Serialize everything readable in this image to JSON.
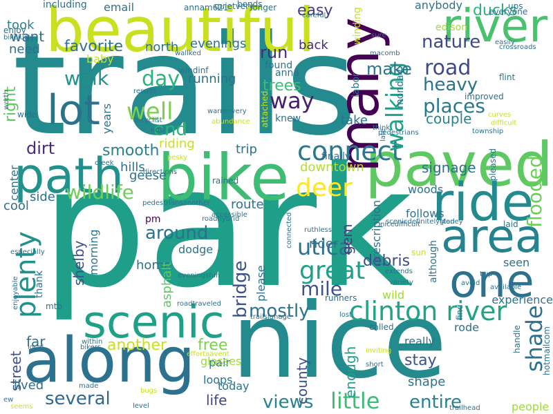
{
  "cloud": {
    "words": [
      {
        "text": "trails",
        "color": "#238a8d"
      },
      {
        "text": "park",
        "color": "#1f9e89"
      },
      {
        "text": "nice",
        "color": "#238a8d"
      },
      {
        "text": "bike",
        "color": "#3fbc73"
      },
      {
        "text": "beautiful",
        "color": "#c8e020"
      },
      {
        "text": "along",
        "color": "#2c718e"
      },
      {
        "text": "paved",
        "color": "#5ec962"
      },
      {
        "text": "path",
        "color": "#21918c"
      },
      {
        "text": "scenic",
        "color": "#1fa188"
      },
      {
        "text": "many",
        "color": "#440154"
      },
      {
        "text": "river",
        "color": "#4ac16d"
      },
      {
        "text": "ride",
        "color": "#238a8d"
      },
      {
        "text": "area",
        "color": "#26828e"
      },
      {
        "text": "one",
        "color": "#2c718e"
      },
      {
        "text": "lot",
        "color": "#2c728e"
      },
      {
        "text": "connect",
        "color": "#2a788e"
      },
      {
        "text": "clinton river",
        "color": "#20a486"
      },
      {
        "text": "deer",
        "color": "#fde725"
      },
      {
        "text": "plenty",
        "color": "#21918c"
      },
      {
        "text": "great",
        "color": "#1fa188"
      },
      {
        "text": "well",
        "color": "#7ad151"
      },
      {
        "text": "end",
        "color": "#2db27d"
      },
      {
        "text": "way",
        "color": "#481f70"
      },
      {
        "text": "walking",
        "color": "#1fa188"
      },
      {
        "text": "places",
        "color": "#2a788e"
      },
      {
        "text": "road",
        "color": "#3e4989"
      },
      {
        "text": "nature",
        "color": "#3e4989"
      },
      {
        "text": "make",
        "color": "#2c728e"
      },
      {
        "text": "heavy",
        "color": "#2c728e"
      },
      {
        "text": "day",
        "color": "#2db27d"
      },
      {
        "text": "walk",
        "color": "#21918c"
      },
      {
        "text": "wildlife",
        "color": "#6ece58"
      },
      {
        "text": "several",
        "color": "#31688e"
      },
      {
        "text": "little",
        "color": "#3fbc73"
      },
      {
        "text": "views",
        "color": "#26828e"
      },
      {
        "text": "entire",
        "color": "#26828e"
      },
      {
        "text": "utica",
        "color": "#2c718e"
      },
      {
        "text": "mile",
        "color": "#3b528b"
      },
      {
        "text": "mostly",
        "color": "#2c728e"
      },
      {
        "text": "shade",
        "color": "#2c718e"
      },
      {
        "text": "around",
        "color": "#2c728e"
      },
      {
        "text": "bridge",
        "color": "#3b528b"
      },
      {
        "text": "dirt",
        "color": "#472c7a"
      },
      {
        "text": "smooth",
        "color": "#26828e"
      },
      {
        "text": "run",
        "color": "#472c7a"
      },
      {
        "text": "favorite",
        "color": "#2c718e"
      },
      {
        "text": "flooded",
        "color": "#6ece58"
      },
      {
        "text": "right",
        "color": "#5ec962"
      },
      {
        "text": "couple",
        "color": "#25848e"
      },
      {
        "text": "another",
        "color": "#c8e020"
      },
      {
        "text": "free",
        "color": "#7ad151"
      },
      {
        "text": "life",
        "color": "#414487"
      },
      {
        "text": "county",
        "color": "#3b528b"
      },
      {
        "text": "enough",
        "color": "#1f9e89"
      },
      {
        "text": "stay",
        "color": "#3b528b"
      },
      {
        "text": "debris",
        "color": "#3e4989"
      },
      {
        "text": "trees",
        "color": "#3fbc73"
      },
      {
        "text": "ducks",
        "color": "#2db27d"
      },
      {
        "text": "want",
        "color": "#2c728e"
      },
      {
        "text": "took",
        "color": "#26828e"
      },
      {
        "text": "need",
        "color": "#2c718e"
      },
      {
        "text": "easy",
        "color": "#433e85"
      },
      {
        "text": "back",
        "color": "#472c7a"
      },
      {
        "text": "take",
        "color": "#2c718e"
      },
      {
        "text": "gem",
        "color": "#433e85"
      },
      {
        "text": "home",
        "color": "#2c718e"
      },
      {
        "text": "route",
        "color": "#2c718e"
      },
      {
        "text": "far",
        "color": "#2c728e"
      },
      {
        "text": "cool",
        "color": "#2c718e"
      },
      {
        "text": "side",
        "color": "#2c718e"
      },
      {
        "text": "shelby",
        "color": "#3b528b"
      },
      {
        "text": "street",
        "color": "#3b528b"
      },
      {
        "text": "lived",
        "color": "#2c718e"
      },
      {
        "text": "years",
        "color": "#2c718e"
      },
      {
        "text": "center",
        "color": "#2c718e"
      },
      {
        "text": "riding",
        "color": "#c8e020"
      },
      {
        "text": "running",
        "color": "#2c728e"
      },
      {
        "text": "evenings",
        "color": "#2c728e"
      },
      {
        "text": "north",
        "color": "#2c718e"
      },
      {
        "text": "baby",
        "color": "#c8e020"
      },
      {
        "text": "hills",
        "color": "#2c718e"
      },
      {
        "text": "geese",
        "color": "#2c718e"
      },
      {
        "text": "asphalt",
        "color": "#5ec962"
      },
      {
        "text": "dodge",
        "color": "#2c718e"
      },
      {
        "text": "pm",
        "color": "#440154"
      },
      {
        "text": "trip",
        "color": "#2c718e"
      },
      {
        "text": "downtown",
        "color": "#b5de2b"
      },
      {
        "text": "signage",
        "color": "#2c718e"
      },
      {
        "text": "woods",
        "color": "#2c718e"
      },
      {
        "text": "follows",
        "color": "#2c718e"
      },
      {
        "text": "rider",
        "color": "#2c718e"
      },
      {
        "text": "wild",
        "color": "#a0da39"
      },
      {
        "text": "seen",
        "color": "#2c718e"
      },
      {
        "text": "rode",
        "color": "#2c718e"
      },
      {
        "text": "really",
        "color": "#2c718e"
      },
      {
        "text": "shape",
        "color": "#2c718e"
      },
      {
        "text": "loops",
        "color": "#2c718e"
      },
      {
        "text": "pair",
        "color": "#2c718e"
      },
      {
        "text": "today",
        "color": "#2c718e"
      },
      {
        "text": "please",
        "color": "#2c718e"
      },
      {
        "text": "morning",
        "color": "#2c718e"
      },
      {
        "text": "experience",
        "color": "#2c718e"
      },
      {
        "text": "people",
        "color": "#a0da39"
      },
      {
        "text": "glasses",
        "color": "#a0da39"
      },
      {
        "text": "anybody",
        "color": "#2c718e"
      },
      {
        "text": "edison",
        "color": "#a0da39"
      },
      {
        "text": "found",
        "color": "#2c718e"
      },
      {
        "text": "anna",
        "color": "#2c718e"
      },
      {
        "text": "knew",
        "color": "#2c718e"
      },
      {
        "text": "labor",
        "color": "#2c718e"
      },
      {
        "text": "monday",
        "color": "#2c718e"
      },
      {
        "text": "prescription",
        "color": "#2c718e"
      },
      {
        "text": "finally",
        "color": "#2c718e"
      },
      {
        "text": "although",
        "color": "#2c718e"
      },
      {
        "text": "thank",
        "color": "#2c718e"
      },
      {
        "text": "email",
        "color": "#2c718e"
      },
      {
        "text": "including",
        "color": "#2c718e"
      },
      {
        "text": "annam621",
        "color": "#2c718e"
      },
      {
        "text": "quietvery",
        "color": "#2c718e"
      },
      {
        "text": "bends",
        "color": "#2c718e"
      },
      {
        "text": "longer",
        "color": "#2c718e"
      },
      {
        "text": "ups",
        "color": "#2c718e"
      },
      {
        "text": "careful",
        "color": "#2c718e"
      },
      {
        "text": "winding",
        "color": "#c8e020"
      },
      {
        "text": "everyone",
        "color": "#2c718e"
      },
      {
        "text": "sure",
        "color": "#2c718e"
      },
      {
        "text": "macomb",
        "color": "#2c718e"
      },
      {
        "text": "easily",
        "color": "#2c718e"
      },
      {
        "text": "crossroads",
        "color": "#2c718e"
      },
      {
        "text": "enjoy",
        "color": "#2c718e"
      },
      {
        "text": "bikejust",
        "color": "#2c718e"
      },
      {
        "text": "wallked",
        "color": "#2c718e"
      },
      {
        "text": "windinf",
        "color": "#2c718e"
      },
      {
        "text": "results",
        "color": "#2c718e"
      },
      {
        "text": "flint",
        "color": "#2c718e"
      },
      {
        "text": "improved",
        "color": "#2c718e"
      },
      {
        "text": "curves",
        "color": "#c8e020"
      },
      {
        "text": "difficult",
        "color": "#c8e020"
      },
      {
        "text": "township",
        "color": "#2c718e"
      },
      {
        "text": "worth",
        "color": "#2c718e"
      },
      {
        "text": "wide",
        "color": "#2c718e"
      },
      {
        "text": "bicyclist",
        "color": "#2c718e"
      },
      {
        "text": "warrenvery",
        "color": "#2c718e"
      },
      {
        "text": "abundance",
        "color": "#c8e020"
      },
      {
        "text": "attached",
        "color": "#c8e020"
      },
      {
        "text": "think",
        "color": "#2c718e"
      },
      {
        "text": "pedestrians",
        "color": "#2c718e"
      },
      {
        "text": "late",
        "color": "#2c718e"
      },
      {
        "text": "now",
        "color": "#2c718e"
      },
      {
        "text": "creek",
        "color": "#2c718e"
      },
      {
        "text": "pesky",
        "color": "#c8e020"
      },
      {
        "text": "rained",
        "color": "#2c718e"
      },
      {
        "text": "pleased",
        "color": "#2c718e"
      },
      {
        "text": "directions",
        "color": "#2c718e"
      },
      {
        "text": "pedestriansanother",
        "color": "#2c718e"
      },
      {
        "text": "accessible",
        "color": "#2c718e"
      },
      {
        "text": "roadhybrid",
        "color": "#2c718e"
      },
      {
        "text": "connected",
        "color": "#2c718e"
      },
      {
        "text": "scenicdefinitelyglad",
        "color": "#2c718e"
      },
      {
        "text": "stoney",
        "color": "#2c718e"
      },
      {
        "text": "laid",
        "color": "#2c718e"
      },
      {
        "text": "nicedifficult",
        "color": "#2c718e"
      },
      {
        "text": "ruthless",
        "color": "#2c718e"
      },
      {
        "text": "sun",
        "color": "#c8e020"
      },
      {
        "text": "extends",
        "color": "#2c718e"
      },
      {
        "text": "variety",
        "color": "#2c718e"
      },
      {
        "text": "twp",
        "color": "#2c718e"
      },
      {
        "text": "avoid",
        "color": "#2c718e"
      },
      {
        "text": "available",
        "color": "#2c718e"
      },
      {
        "text": "runners",
        "color": "#2c718e"
      },
      {
        "text": "lost",
        "color": "#2c718e"
      },
      {
        "text": "called",
        "color": "#2c718e"
      },
      {
        "text": "inviting",
        "color": "#c8e020"
      },
      {
        "text": "short",
        "color": "#2c718e"
      },
      {
        "text": "find",
        "color": "#2c718e"
      },
      {
        "text": "handle",
        "color": "#2c718e"
      },
      {
        "text": "hotmailcom",
        "color": "#2c718e"
      },
      {
        "text": "mtb",
        "color": "#2c718e"
      },
      {
        "text": "roadtraveled",
        "color": "#2c718e"
      },
      {
        "text": "trailsignage",
        "color": "#2c718e"
      },
      {
        "text": "eveningsfun",
        "color": "#2c718e"
      },
      {
        "text": "especially",
        "color": "#2c718e"
      },
      {
        "text": "enjoyable",
        "color": "#2c718e"
      },
      {
        "text": "within",
        "color": "#2c718e"
      },
      {
        "text": "bikers",
        "color": "#2c718e"
      },
      {
        "text": "effortaavent",
        "color": "#c8e020"
      },
      {
        "text": "local",
        "color": "#2c718e"
      },
      {
        "text": "made",
        "color": "#2c718e"
      },
      {
        "text": "ew",
        "color": "#2c718e"
      },
      {
        "text": "seems",
        "color": "#c8e020"
      },
      {
        "text": "bugs",
        "color": "#c8e020"
      },
      {
        "text": "level",
        "color": "#2c718e"
      },
      {
        "text": "trailhead",
        "color": "#2c718e"
      },
      {
        "text": "ryan",
        "color": "#2c718e"
      },
      {
        "text": "refreshingly",
        "color": "#2c718e"
      },
      {
        "text": "walked",
        "color": "#2c718e"
      }
    ]
  }
}
